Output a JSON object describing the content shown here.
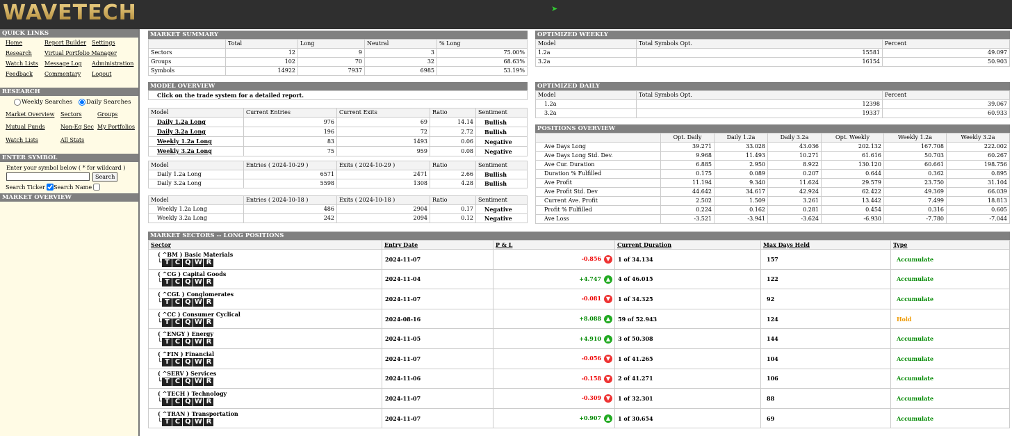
{
  "header": {
    "logo": "WAVETECH"
  },
  "sidebar": {
    "quick_links_title": "QUICK LINKS",
    "quick_links": [
      "Home",
      "Report Builder",
      "Settings",
      "Research",
      "Virtual Portfolio Manager",
      "Watch Lists",
      "Message Log",
      "Administration",
      "Feedback",
      "Commentary",
      "Logout"
    ],
    "research_title": "RESEARCH",
    "weekly_label": "Weekly Searches",
    "daily_label": "Daily Searches",
    "research_links": [
      "Market Overview",
      "Sectors",
      "Groups",
      "Mutual Funds",
      "Non-Eq Sec",
      "My Portfolios",
      "Watch Lists",
      "All Stats"
    ],
    "enter_symbol_title": "ENTER SYMBOL",
    "enter_symbol_hint": "Enter your symbol below ( * for wildcard )",
    "search_button": "Search",
    "search_ticker": "Search Ticker",
    "search_name": "Search Name",
    "market_overview_title": "MARKET OVERVIEW"
  },
  "market_summary": {
    "title": "MARKET SUMMARY",
    "headers": [
      "Total",
      "Long",
      "Neutral",
      "% Long"
    ],
    "rows": [
      {
        "label": "Sectors",
        "values": [
          "12",
          "9",
          "3",
          "75.00%"
        ]
      },
      {
        "label": "Groups",
        "values": [
          "102",
          "70",
          "32",
          "68.63%"
        ]
      },
      {
        "label": "Symbols",
        "values": [
          "14922",
          "7937",
          "6985",
          "53.19%"
        ]
      }
    ]
  },
  "optimized_weekly": {
    "title": "OPTIMIZED WEEKLY",
    "headers": [
      "Model",
      "Total Symbols Opt.",
      "Percent"
    ],
    "rows": [
      [
        "1.2a",
        "15581",
        "49.097"
      ],
      [
        "3.2a",
        "16154",
        "50.903"
      ]
    ]
  },
  "optimized_daily": {
    "title": "OPTIMIZED DAILY",
    "headers": [
      "Model",
      "Total Symbols Opt.",
      "Percent"
    ],
    "rows": [
      [
        "1.2a",
        "12398",
        "39.067"
      ],
      [
        "3.2a",
        "19337",
        "60.933"
      ]
    ]
  },
  "model_overview": {
    "title": "MODEL OVERVIEW",
    "note": "Click on the trade system for a detailed report.",
    "t1_headers": [
      "Model",
      "Current Entries",
      "Current Exits",
      "Ratio",
      "Sentiment"
    ],
    "t1_rows": [
      [
        "Daily 1.2a Long",
        "976",
        "69",
        "14.14",
        "Bullish"
      ],
      [
        "Daily 3.2a Long",
        "196",
        "72",
        "2.72",
        "Bullish"
      ],
      [
        "Weekly 1.2a Long",
        "83",
        "1493",
        "0.06",
        "Negative"
      ],
      [
        "Weekly 3.2a Long",
        "75",
        "959",
        "0.08",
        "Negative"
      ]
    ],
    "t2_headers": [
      "Model",
      "Entries ( 2024-10-29 )",
      "Exits ( 2024-10-29 )",
      "Ratio",
      "Sentiment"
    ],
    "t2_rows": [
      [
        "Daily 1.2a Long",
        "6571",
        "2471",
        "2.66",
        "Bullish"
      ],
      [
        "Daily 3.2a Long",
        "5598",
        "1308",
        "4.28",
        "Bullish"
      ]
    ],
    "t3_headers": [
      "Model",
      "Entries ( 2024-10-18 )",
      "Exits ( 2024-10-18 )",
      "Ratio",
      "Sentiment"
    ],
    "t3_rows": [
      [
        "Weekly 1.2a Long",
        "486",
        "2904",
        "0.17",
        "Negative"
      ],
      [
        "Weekly 3.2a Long",
        "242",
        "2094",
        "0.12",
        "Negative"
      ]
    ]
  },
  "positions_overview": {
    "title": "POSITIONS OVERVIEW",
    "headers": [
      "Opt. Daily",
      "Daily 1.2a",
      "Daily 3.2a",
      "Opt. Weekly",
      "Weekly 1.2a",
      "Weekly 3.2a"
    ],
    "rows": [
      {
        "label": "Ave Days Long",
        "values": [
          "39.271",
          "33.028",
          "43.036",
          "202.132",
          "167.708",
          "222.002"
        ]
      },
      {
        "label": "Ave Days Long Std. Dev.",
        "values": [
          "9.968",
          "11.493",
          "10.271",
          "61.616",
          "50.703",
          "60.267"
        ]
      },
      {
        "label": "Ave Cur. Duration",
        "values": [
          "6.885",
          "2.950",
          "8.922",
          "130.120",
          "60.661",
          "198.756"
        ]
      },
      {
        "label": "Duration % Fulfilled",
        "values": [
          "0.175",
          "0.089",
          "0.207",
          "0.644",
          "0.362",
          "0.895"
        ]
      },
      {
        "label": "Ave Profit",
        "values": [
          "11.194",
          "9.340",
          "11.624",
          "29.579",
          "23.750",
          "31.104"
        ]
      },
      {
        "label": "Ave Profit Std. Dev",
        "values": [
          "44.642",
          "34.617",
          "42.924",
          "62.422",
          "49.369",
          "66.039"
        ]
      },
      {
        "label": "Current Ave. Profit",
        "values": [
          "2.502",
          "1.509",
          "3.261",
          "13.442",
          "7.499",
          "18.813"
        ]
      },
      {
        "label": "Profit % Fulfilled",
        "values": [
          "0.224",
          "0.162",
          "0.281",
          "0.454",
          "0.316",
          "0.605"
        ]
      },
      {
        "label": "Ave Loss",
        "values": [
          "-3.521",
          "-3.941",
          "-3.624",
          "-6.930",
          "-7.780",
          "-7.044"
        ]
      }
    ]
  },
  "market_sectors": {
    "title": "MARKET SECTORS -- LONG POSITIONS",
    "headers": [
      "Sector",
      "Entry Date",
      "P & L",
      "Current Duration",
      "Max Days Held",
      "Type"
    ],
    "tree": "└",
    "letters": [
      "T",
      "C",
      "Q",
      "W",
      "R"
    ],
    "rows": [
      {
        "sector": "( ^BM ) Basic Materials",
        "date": "2024-11-07",
        "pl": "-0.856",
        "dir": "down",
        "dur": "1 of 34.134",
        "max": "157",
        "type": "Accumulate"
      },
      {
        "sector": "( ^CG ) Capital Goods",
        "date": "2024-11-04",
        "pl": "+4.747",
        "dir": "up",
        "dur": "4 of 46.015",
        "max": "122",
        "type": "Accumulate"
      },
      {
        "sector": "( ^CGL ) Conglomerates",
        "date": "2024-11-07",
        "pl": "-0.081",
        "dir": "down",
        "dur": "1 of 34.325",
        "max": "92",
        "type": "Accumulate"
      },
      {
        "sector": "( ^CC ) Consumer Cyclical",
        "date": "2024-08-16",
        "pl": "+8.088",
        "dir": "up",
        "dur": "59 of 52.943",
        "max": "124",
        "type": "Hold"
      },
      {
        "sector": "( ^ENGY ) Energy",
        "date": "2024-11-05",
        "pl": "+4.910",
        "dir": "up",
        "dur": "3 of 50.308",
        "max": "144",
        "type": "Accumulate"
      },
      {
        "sector": "( ^FIN ) Financial",
        "date": "2024-11-07",
        "pl": "-0.056",
        "dir": "down",
        "dur": "1 of 41.265",
        "max": "104",
        "type": "Accumulate"
      },
      {
        "sector": "( ^SERV ) Services",
        "date": "2024-11-06",
        "pl": "-0.158",
        "dir": "down",
        "dur": "2 of 41.271",
        "max": "106",
        "type": "Accumulate"
      },
      {
        "sector": "( ^TECH ) Technology",
        "date": "2024-11-07",
        "pl": "-0.309",
        "dir": "down",
        "dur": "1 of 32.301",
        "max": "88",
        "type": "Accumulate"
      },
      {
        "sector": "( ^TRAN ) Transportation",
        "date": "2024-11-07",
        "pl": "+0.907",
        "dir": "up",
        "dur": "1 of 30.654",
        "max": "69",
        "type": "Accumulate"
      }
    ]
  }
}
